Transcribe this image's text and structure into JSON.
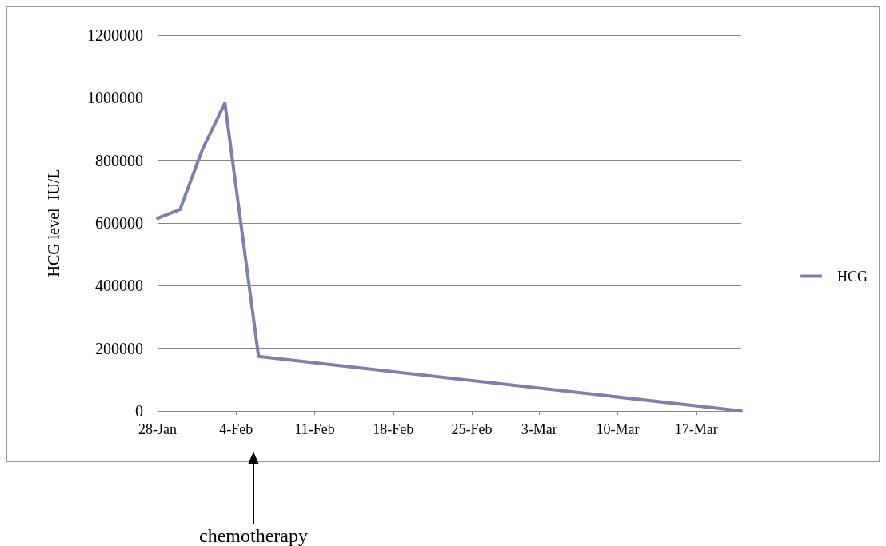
{
  "chart_data": {
    "type": "line",
    "ylabel": "HCG level  IU/L",
    "x": [
      "--01-28",
      "--01-30",
      "--02-01",
      "--02-03",
      "--02-06",
      "--03-21"
    ],
    "series": [
      {
        "name": "HCG",
        "color": "#7f7fab",
        "values": [
          615000,
          643000,
          835000,
          983000,
          174000,
          0
        ]
      }
    ],
    "xlim": [
      "--01-28",
      "--03-21"
    ],
    "xticks": [
      {
        "value": "--01-28",
        "label": "28-Jan"
      },
      {
        "value": "--02-04",
        "label": "4-Feb"
      },
      {
        "value": "--02-11",
        "label": "11-Feb"
      },
      {
        "value": "--02-18",
        "label": "18-Feb"
      },
      {
        "value": "--02-25",
        "label": "25-Feb"
      },
      {
        "value": "--03-03",
        "label": "3-Mar"
      },
      {
        "value": "--03-10",
        "label": "10-Mar"
      },
      {
        "value": "--03-17",
        "label": "17-Mar"
      }
    ],
    "ylim": [
      0,
      1200000
    ],
    "yticks": [
      0,
      200000,
      400000,
      600000,
      800000,
      1000000,
      1200000
    ],
    "grid": "y",
    "legend": "right",
    "marker": "none",
    "line_style": "solid",
    "annotations": [
      "chemotherapy"
    ]
  }
}
